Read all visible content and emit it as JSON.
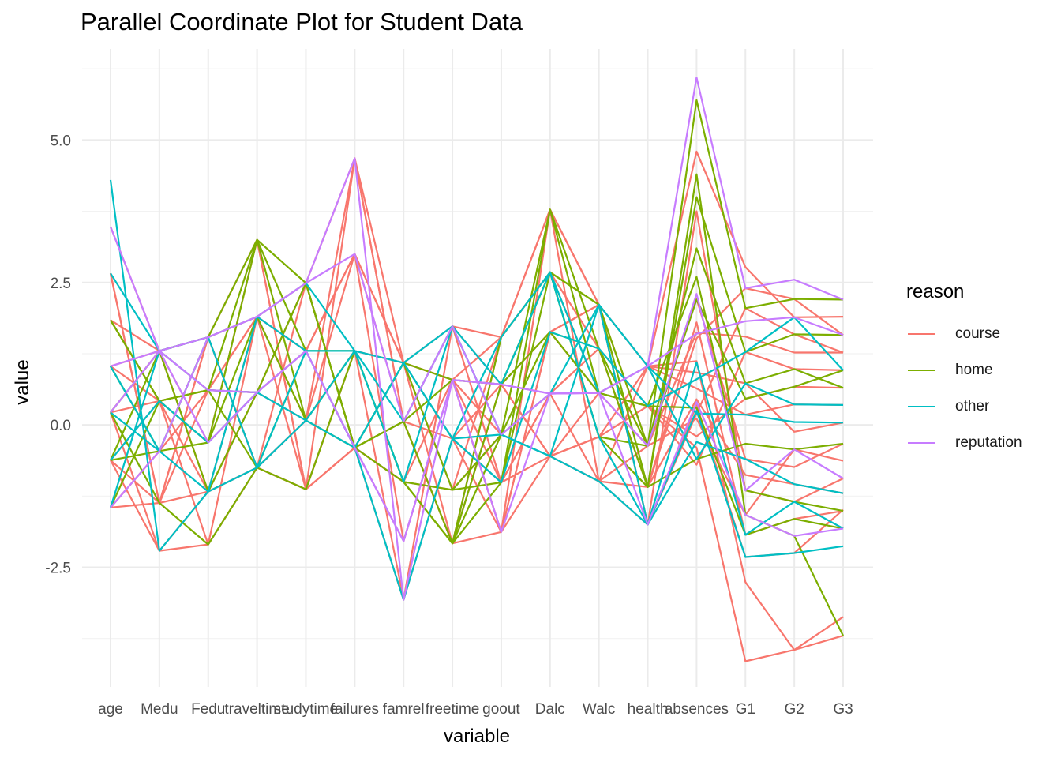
{
  "title": "Parallel Coordinate Plot for Student Data",
  "legend": {
    "title": "reason",
    "items": [
      {
        "label": "course",
        "color": "#f8766d"
      },
      {
        "label": "home",
        "color": "#7cae00"
      },
      {
        "label": "other",
        "color": "#00bfc4"
      },
      {
        "label": "reputation",
        "color": "#c77cff"
      }
    ]
  },
  "chart_data": {
    "type": "line",
    "title": "Parallel Coordinate Plot for Student Data",
    "xlabel": "variable",
    "ylabel": "value",
    "categories": [
      "age",
      "Medu",
      "Fedu",
      "traveltime",
      "studytime",
      "failures",
      "famrel",
      "freetime",
      "goout",
      "Dalc",
      "Walc",
      "health",
      "absences",
      "G1",
      "G2",
      "G3"
    ],
    "yticks": [
      -2.5,
      0.0,
      2.5,
      5.0
    ],
    "ytick_labels": [
      "-2.5",
      "0.0",
      "2.5",
      "5.0"
    ],
    "ylim": [
      -4.6,
      6.6
    ],
    "grid": true,
    "legend_position": "right",
    "series": [
      {
        "group": "course",
        "values": [
          -1.45,
          -1.37,
          -1.17,
          -0.75,
          -1.13,
          -0.4,
          1.09,
          -0.24,
          -1.01,
          -0.55,
          -0.99,
          -1.75,
          0.35,
          -2.32,
          -2.25,
          -1.49
        ]
      },
      {
        "group": "course",
        "values": [
          -0.62,
          0.42,
          0.61,
          0.57,
          1.3,
          3.0,
          -2.04,
          0.79,
          -1.88,
          1.63,
          0.56,
          0.33,
          -0.4,
          -4.15,
          -3.95,
          -3.7
        ]
      },
      {
        "group": "course",
        "values": [
          0.22,
          -2.21,
          -2.1,
          1.9,
          0.08,
          4.68,
          0.06,
          -2.08,
          1.54,
          3.78,
          2.11,
          1.03,
          4.8,
          2.77,
          1.89,
          1.9
        ]
      },
      {
        "group": "course",
        "values": [
          1.03,
          1.3,
          1.54,
          -0.75,
          2.49,
          -0.4,
          -3.07,
          1.73,
          0.71,
          -0.55,
          -0.99,
          -0.37,
          0.11,
          -1.58,
          -0.43,
          -0.63
        ]
      },
      {
        "group": "course",
        "values": [
          1.84,
          0.42,
          -0.31,
          3.25,
          -1.13,
          1.3,
          1.09,
          -1.14,
          -0.17,
          0.55,
          1.34,
          -1.09,
          1.52,
          2.4,
          2.21,
          1.58
        ]
      },
      {
        "group": "course",
        "values": [
          2.66,
          -1.37,
          0.61,
          0.57,
          0.08,
          -0.4,
          -1.0,
          0.79,
          1.54,
          2.68,
          0.56,
          1.03,
          0.64,
          0.18,
          0.36,
          0.35
        ]
      },
      {
        "group": "course",
        "values": [
          3.48,
          1.3,
          -1.17,
          1.9,
          1.3,
          3.0,
          1.09,
          -2.08,
          -1.88,
          1.63,
          2.11,
          -1.75,
          3.75,
          -1.15,
          -1.35,
          -0.94
        ]
      },
      {
        "group": "course",
        "values": [
          -1.45,
          -0.46,
          1.54,
          -0.75,
          -1.13,
          4.68,
          0.06,
          -0.24,
          0.71,
          -0.55,
          -0.21,
          0.33,
          -0.7,
          1.28,
          0.98,
          0.96
        ]
      },
      {
        "group": "course",
        "values": [
          0.22,
          1.3,
          0.61,
          1.9,
          2.49,
          -0.4,
          -2.04,
          0.79,
          -1.01,
          0.55,
          1.34,
          -1.09,
          1.8,
          -1.93,
          -1.65,
          -1.51
        ]
      },
      {
        "group": "course",
        "values": [
          -0.62,
          -2.21,
          -1.17,
          0.57,
          1.3,
          3.0,
          1.09,
          1.73,
          1.54,
          3.78,
          -0.99,
          1.03,
          0.92,
          0.73,
          -0.12,
          0.04
        ]
      },
      {
        "group": "course",
        "values": [
          1.03,
          0.42,
          -2.1,
          -0.75,
          0.08,
          1.3,
          -3.07,
          -0.24,
          -1.88,
          -0.55,
          0.56,
          -0.37,
          2.21,
          -0.6,
          -0.74,
          -0.33
        ]
      },
      {
        "group": "course",
        "values": [
          2.66,
          -1.37,
          1.54,
          3.25,
          -1.13,
          -0.4,
          0.06,
          -2.08,
          0.71,
          1.63,
          2.11,
          -1.75,
          0.2,
          2.05,
          1.59,
          1.27
        ]
      },
      {
        "group": "course",
        "values": [
          1.84,
          1.3,
          -0.31,
          0.57,
          2.49,
          4.68,
          1.09,
          0.79,
          -0.17,
          -0.55,
          -0.21,
          1.03,
          1.12,
          -2.76,
          -3.95,
          -3.37
        ]
      },
      {
        "group": "course",
        "values": [
          -1.45,
          -0.46,
          0.61,
          1.9,
          1.3,
          -0.4,
          -1.0,
          -1.14,
          1.54,
          2.68,
          1.34,
          0.33,
          -0.2,
          0.46,
          0.67,
          0.65
        ]
      },
      {
        "group": "course",
        "values": [
          0.22,
          0.42,
          -1.17,
          -0.75,
          0.08,
          3.0,
          0.06,
          1.73,
          -1.01,
          0.55,
          -0.99,
          -1.09,
          0.45,
          -0.88,
          -1.04,
          -1.2
        ]
      },
      {
        "group": "course",
        "values": [
          -0.62,
          -1.37,
          1.54,
          1.9,
          -1.13,
          1.3,
          1.09,
          0.79,
          -1.88,
          3.78,
          2.11,
          -0.37,
          1.62,
          1.55,
          1.27,
          1.27
        ]
      },
      {
        "group": "home",
        "values": [
          1.84,
          0.42,
          0.61,
          3.25,
          2.49,
          -0.4,
          -1.0,
          -2.08,
          0.71,
          2.68,
          2.11,
          -0.37,
          5.7,
          2.05,
          2.21,
          2.2
        ]
      },
      {
        "group": "home",
        "values": [
          0.22,
          -1.37,
          -2.1,
          -0.75,
          1.3,
          1.3,
          -1.0,
          -1.14,
          -1.01,
          3.78,
          1.34,
          -1.09,
          4.4,
          -1.58,
          -1.95,
          -3.7
        ]
      },
      {
        "group": "home",
        "values": [
          -0.62,
          1.3,
          1.54,
          1.9,
          2.49,
          -0.4,
          1.09,
          0.79,
          0.71,
          2.68,
          -0.21,
          -0.37,
          3.1,
          0.73,
          0.98,
          0.65
        ]
      },
      {
        "group": "home",
        "values": [
          1.03,
          -0.46,
          -0.31,
          3.25,
          0.08,
          -0.4,
          0.06,
          -2.08,
          -0.17,
          1.63,
          0.56,
          0.33,
          2.6,
          -1.15,
          -1.35,
          -1.51
        ]
      },
      {
        "group": "home",
        "values": [
          -1.45,
          0.42,
          0.61,
          -0.75,
          -1.13,
          1.3,
          -1.0,
          -2.08,
          1.54,
          2.68,
          2.11,
          -1.09,
          4.0,
          1.28,
          1.59,
          1.58
        ]
      },
      {
        "group": "home",
        "values": [
          0.22,
          1.3,
          -1.17,
          0.57,
          2.49,
          -0.4,
          1.09,
          -1.14,
          -0.17,
          3.78,
          0.56,
          0.33,
          0.3,
          -1.93,
          -1.65,
          -1.82
        ]
      },
      {
        "group": "home",
        "values": [
          -0.62,
          -0.46,
          1.54,
          3.25,
          1.3,
          -0.4,
          0.06,
          0.79,
          0.71,
          1.63,
          1.34,
          -0.37,
          2.2,
          0.46,
          0.67,
          0.96
        ]
      },
      {
        "group": "home",
        "values": [
          1.84,
          0.42,
          -0.31,
          1.9,
          0.08,
          1.3,
          -1.0,
          -2.08,
          -1.01,
          2.68,
          -0.21,
          -1.09,
          -0.6,
          -0.33,
          -0.43,
          -0.33
        ]
      },
      {
        "group": "other",
        "values": [
          4.3,
          -2.21,
          -1.17,
          -0.75,
          0.08,
          1.3,
          1.09,
          1.73,
          -0.17,
          -0.55,
          2.11,
          -1.75,
          0.25,
          -2.32,
          -2.25,
          -2.13
        ]
      },
      {
        "group": "other",
        "values": [
          -0.62,
          0.42,
          -0.31,
          0.57,
          1.3,
          -0.4,
          -3.07,
          -0.24,
          1.54,
          2.68,
          0.56,
          1.03,
          -0.6,
          0.73,
          0.36,
          0.35
        ]
      },
      {
        "group": "other",
        "values": [
          1.03,
          -0.46,
          1.54,
          1.9,
          2.49,
          1.3,
          0.06,
          1.73,
          -0.17,
          -0.55,
          -0.99,
          -1.75,
          1.1,
          -1.93,
          -1.35,
          -1.82
        ]
      },
      {
        "group": "other",
        "values": [
          -1.45,
          1.3,
          0.61,
          0.57,
          0.08,
          -0.4,
          1.09,
          -0.24,
          -1.01,
          1.63,
          1.34,
          0.33,
          0.8,
          1.28,
          1.89,
          0.96
        ]
      },
      {
        "group": "other",
        "values": [
          0.22,
          -0.46,
          -1.17,
          1.9,
          1.3,
          1.3,
          -1.0,
          1.73,
          0.71,
          2.68,
          -0.21,
          -1.75,
          -0.3,
          -0.6,
          -1.04,
          -1.2
        ]
      },
      {
        "group": "other",
        "values": [
          2.66,
          1.3,
          1.54,
          -0.75,
          1.3,
          -0.4,
          1.09,
          -0.24,
          -0.17,
          0.55,
          2.11,
          1.03,
          0.2,
          0.18,
          0.05,
          0.04
        ]
      },
      {
        "group": "reputation",
        "values": [
          1.03,
          1.3,
          1.54,
          1.9,
          2.49,
          4.68,
          -3.07,
          0.79,
          0.71,
          0.55,
          0.56,
          1.03,
          6.1,
          2.4,
          2.55,
          2.2
        ]
      },
      {
        "group": "reputation",
        "values": [
          3.48,
          1.3,
          -0.31,
          0.57,
          1.3,
          -0.4,
          -2.04,
          0.79,
          -1.88,
          0.55,
          0.56,
          -1.75,
          0.4,
          -1.58,
          -1.95,
          -1.82
        ]
      },
      {
        "group": "reputation",
        "values": [
          -1.45,
          -0.46,
          1.54,
          1.9,
          2.49,
          3.0,
          0.06,
          1.73,
          -0.17,
          0.55,
          0.56,
          1.03,
          1.6,
          1.82,
          1.89,
          1.58
        ]
      },
      {
        "group": "reputation",
        "values": [
          0.22,
          1.3,
          0.61,
          0.57,
          1.3,
          -0.4,
          -2.04,
          0.79,
          0.71,
          0.55,
          0.56,
          -0.37,
          2.3,
          -1.15,
          -0.43,
          -0.94
        ]
      }
    ]
  }
}
